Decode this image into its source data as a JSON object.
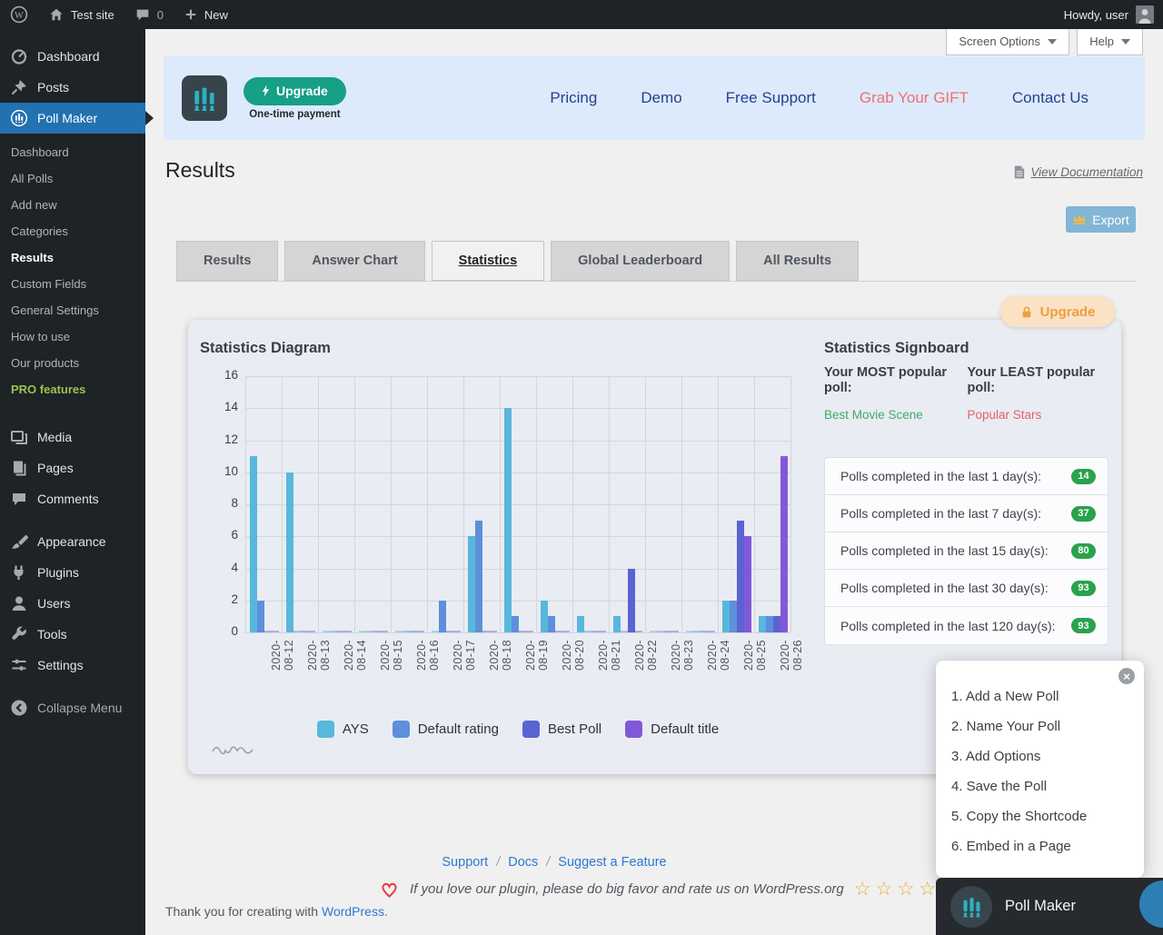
{
  "admin_bar": {
    "site_name": "Test site",
    "comments_count": "0",
    "new_label": "New",
    "howdy_text": "Howdy, user"
  },
  "meta_buttons": {
    "screen_options": "Screen Options",
    "help": "Help"
  },
  "sidebar": {
    "menu_top": [
      {
        "id": "dashboard",
        "label": "Dashboard",
        "active": false
      },
      {
        "id": "posts",
        "label": "Posts",
        "active": false
      },
      {
        "id": "poll-maker",
        "label": "Poll Maker",
        "active": true
      }
    ],
    "poll_maker_submenu": [
      {
        "label": "Dashboard",
        "state": ""
      },
      {
        "label": "All Polls",
        "state": ""
      },
      {
        "label": "Add new",
        "state": ""
      },
      {
        "label": "Categories",
        "state": ""
      },
      {
        "label": "Results",
        "state": "current"
      },
      {
        "label": "Custom Fields",
        "state": ""
      },
      {
        "label": "General Settings",
        "state": ""
      },
      {
        "label": "How to use",
        "state": ""
      },
      {
        "label": "Our products",
        "state": ""
      },
      {
        "label": "PRO features",
        "state": "highlight"
      }
    ],
    "menu_bottom": [
      {
        "id": "media",
        "label": "Media",
        "gap_before": false
      },
      {
        "id": "pages",
        "label": "Pages",
        "gap_before": false
      },
      {
        "id": "comments",
        "label": "Comments",
        "gap_before": false
      },
      {
        "id": "appearance",
        "label": "Appearance",
        "gap_before": true
      },
      {
        "id": "plugins",
        "label": "Plugins",
        "gap_before": false
      },
      {
        "id": "users",
        "label": "Users",
        "gap_before": false
      },
      {
        "id": "tools",
        "label": "Tools",
        "gap_before": false
      },
      {
        "id": "settings",
        "label": "Settings",
        "gap_before": false
      }
    ],
    "collapse_label": "Collapse Menu"
  },
  "banner": {
    "upgrade_label": "Upgrade",
    "upgrade_subtext": "One-time payment",
    "links": [
      {
        "label": "Pricing",
        "accent": false
      },
      {
        "label": "Demo",
        "accent": false
      },
      {
        "label": "Free Support",
        "accent": false
      },
      {
        "label": "Grab Your GIFT",
        "accent": true
      },
      {
        "label": "Contact Us",
        "accent": false
      }
    ]
  },
  "page": {
    "title": "Results",
    "view_documentation": "View Documentation",
    "export_label": "Export",
    "upgrade_pill_label": "Upgrade"
  },
  "tabs": [
    {
      "label": "Results",
      "active": false
    },
    {
      "label": "Answer Chart",
      "active": false
    },
    {
      "label": "Statistics",
      "active": true
    },
    {
      "label": "Global Leaderboard",
      "active": false
    },
    {
      "label": "All Results",
      "active": false
    }
  ],
  "chart_data": {
    "type": "bar",
    "title": "Statistics Diagram",
    "categories": [
      "2020-08-12",
      "2020-08-13",
      "2020-08-14",
      "2020-08-15",
      "2020-08-16",
      "2020-08-17",
      "2020-08-18",
      "2020-08-19",
      "2020-08-20",
      "2020-08-21",
      "2020-08-22",
      "2020-08-23",
      "2020-08-24",
      "2020-08-25",
      "2020-08-26"
    ],
    "series": [
      {
        "name": "AYS",
        "color": "#58b7dc",
        "values": [
          11,
          10,
          0,
          0,
          0,
          0,
          6,
          14,
          2,
          1,
          1,
          0,
          0,
          2,
          1
        ]
      },
      {
        "name": "Default rating",
        "color": "#5e8fdb",
        "values": [
          2,
          0,
          0,
          0,
          0,
          2,
          7,
          1,
          1,
          0,
          0,
          0,
          0,
          2,
          1
        ]
      },
      {
        "name": "Best Poll",
        "color": "#5b63d3",
        "values": [
          0,
          0,
          0,
          0,
          0,
          0,
          0,
          0,
          0,
          0,
          4,
          0,
          0,
          7,
          1
        ]
      },
      {
        "name": "Default title",
        "color": "#8159d8",
        "values": [
          0,
          0,
          0,
          0,
          0,
          0,
          0,
          0,
          0,
          0,
          0,
          0,
          0,
          6,
          11
        ]
      }
    ],
    "xlabel": "",
    "ylabel": "",
    "ylim": [
      0,
      16
    ],
    "ytick_step": 2,
    "grid": true,
    "legend_position": "bottom"
  },
  "signboard": {
    "title": "Statistics Signboard",
    "most_label": "Your MOST popular poll:",
    "most_value": "Best Movie Scene",
    "least_label": "Your LEAST popular poll:",
    "least_value": "Popular Stars",
    "rows": [
      {
        "label": "Polls completed in the last 1 day(s):",
        "value": "14"
      },
      {
        "label": "Polls completed in the last 7 day(s):",
        "value": "37"
      },
      {
        "label": "Polls completed in the last 15 day(s):",
        "value": "80"
      },
      {
        "label": "Polls completed in the last 30 day(s):",
        "value": "93"
      },
      {
        "label": "Polls completed in the last 120 day(s):",
        "value": "93"
      }
    ],
    "badge_color": "#2aa24d",
    "most_color": "#3cab6c",
    "least_color": "#e4606d"
  },
  "steps_widget": {
    "items": [
      "1. Add a New Poll",
      "2. Name Your Poll",
      "3. Add Options",
      "4. Save the Poll",
      "5. Copy the Shortcode",
      "6. Embed in a Page"
    ]
  },
  "pollmaker_widget": {
    "label": "Poll Maker"
  },
  "footer": {
    "links": [
      "Support",
      "Docs",
      "Suggest a Feature"
    ],
    "rate_text": "If you love our plugin, please do big favor and rate us on WordPress.org",
    "stars_count": 5,
    "thanks_prefix": "Thank you for creating with ",
    "thanks_link": "WordPress."
  }
}
